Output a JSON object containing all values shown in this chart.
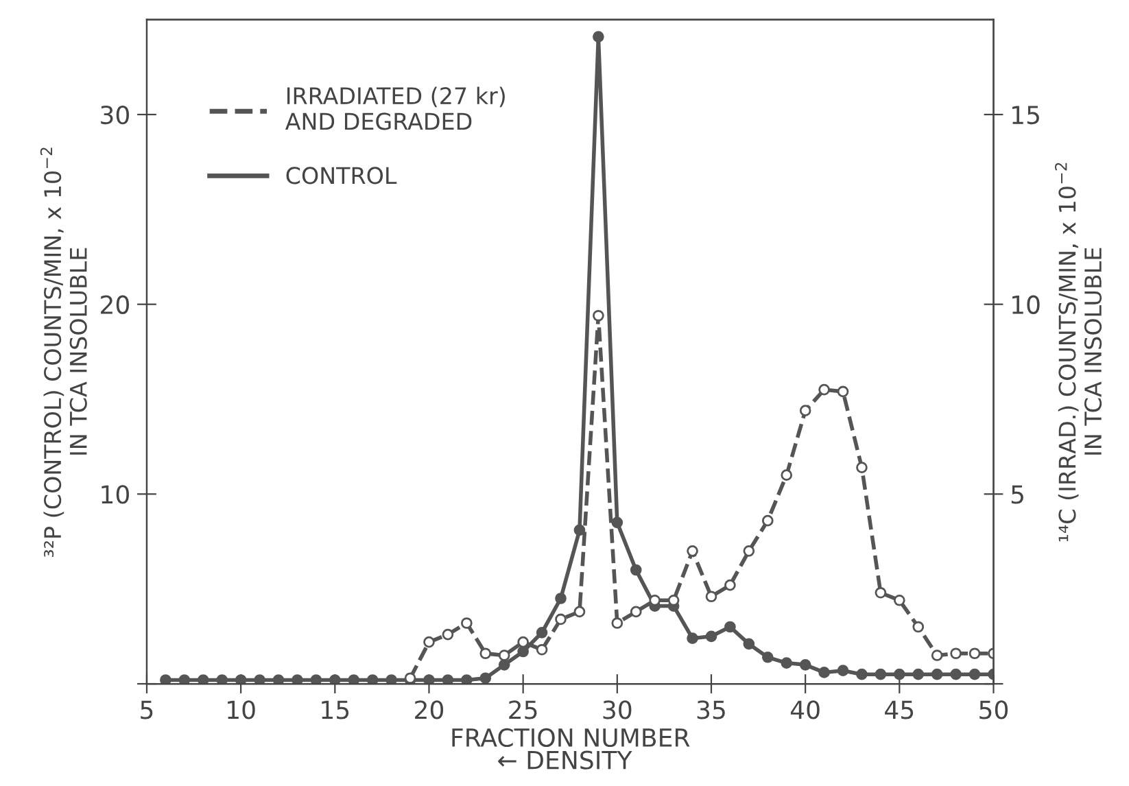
{
  "chart_data": {
    "type": "line",
    "xlabel": "FRACTION NUMBER",
    "ylabel": "³²P (CONTROL) COUNTS/MIN, x 10$^{−2}$\nIN TCA INSOLUBLE",
    "y2label": "¹⁴C (IRRAD.) COUNTS/MIN, x 10$^{−2}$\nIN TCA INSOLUBLE",
    "annotations": [
      "← DENSITY"
    ],
    "xlim": [
      5,
      50
    ],
    "xticks": [
      5,
      10,
      15,
      20,
      25,
      30,
      35,
      40,
      45,
      50
    ],
    "ylim": [
      0,
      35
    ],
    "yticks": [
      {
        "value": 0,
        "label": null
      },
      10,
      20,
      30
    ],
    "y2lim": [
      0,
      17.5
    ],
    "y2ticks": [
      {
        "value": 0,
        "label": null
      },
      5,
      10,
      15
    ],
    "legend": "top left",
    "grid": false,
    "marker": "circle",
    "series": [
      {
        "name": "IRRADIATED (27 kr)\nAND DEGRADED",
        "color": "#555555",
        "axis": "y2",
        "line_style": "dashed",
        "x": [
          19,
          20,
          21,
          22,
          23,
          24,
          25,
          26,
          27,
          28,
          29,
          30,
          31,
          32,
          33,
          34,
          35,
          36,
          37,
          38,
          39,
          40,
          41,
          42,
          43,
          44,
          45,
          46,
          47,
          48,
          49,
          50
        ],
        "values": [
          0.15,
          1.1,
          1.3,
          1.6,
          0.8,
          0.75,
          1.1,
          0.9,
          1.7,
          1.9,
          9.7,
          1.6,
          1.9,
          2.2,
          2.2,
          3.5,
          2.3,
          2.6,
          3.5,
          4.3,
          5.5,
          7.2,
          7.75,
          7.7,
          5.7,
          2.4,
          2.2,
          1.5,
          0.75,
          0.8,
          0.8,
          0.8
        ]
      },
      {
        "name": "CONTROL",
        "color": "#555555",
        "axis": "y",
        "line_style": "solid",
        "x": [
          6,
          7,
          8,
          9,
          10,
          11,
          12,
          13,
          14,
          15,
          16,
          17,
          18,
          19,
          20,
          21,
          22,
          23,
          24,
          25,
          26,
          27,
          28,
          29,
          30,
          31,
          32,
          33,
          34,
          35,
          36,
          37,
          38,
          39,
          40,
          41,
          42,
          43,
          44,
          45,
          46,
          47,
          48,
          49,
          50
        ],
        "values": [
          0.2,
          0.2,
          0.2,
          0.2,
          0.2,
          0.2,
          0.2,
          0.2,
          0.2,
          0.2,
          0.2,
          0.2,
          0.2,
          0.2,
          0.2,
          0.2,
          0.2,
          0.3,
          1.0,
          1.7,
          2.7,
          4.5,
          8.1,
          34.1,
          8.5,
          6.0,
          4.1,
          4.1,
          2.4,
          2.5,
          3.0,
          2.1,
          1.4,
          1.1,
          1.0,
          0.6,
          0.7,
          0.5,
          0.5,
          0.5,
          0.5,
          0.5,
          0.5,
          0.5,
          0.5
        ]
      }
    ]
  }
}
